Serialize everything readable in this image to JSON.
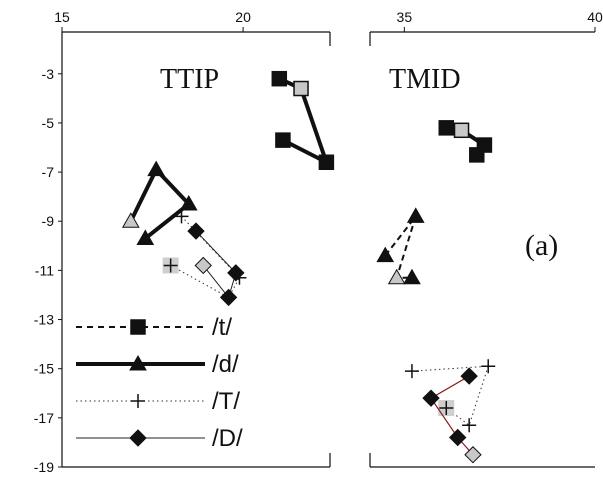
{
  "chart_data": {
    "type": "line",
    "panels": [
      {
        "title": "TTIP",
        "xlim": [
          15,
          22.4
        ],
        "x_ticks": [
          15,
          20
        ],
        "series": [
          {
            "name": "/t/",
            "marker": "square",
            "points": [
              [
                21.0,
                -3.2
              ],
              [
                21.6,
                -3.6
              ],
              [
                22.3,
                -6.6
              ],
              [
                21.1,
                -5.7
              ]
            ],
            "hollow": [
              false,
              true,
              false,
              false
            ]
          },
          {
            "name": "/d/",
            "marker": "triangle",
            "points": [
              [
                16.9,
                -9.0
              ],
              [
                17.6,
                -6.9
              ],
              [
                18.5,
                -8.3
              ],
              [
                17.3,
                -9.7
              ]
            ],
            "hollow": [
              true,
              false,
              false,
              false
            ]
          },
          {
            "name": "/T/",
            "marker": "plus",
            "points": [
              [
                18.3,
                -8.8
              ],
              [
                19.9,
                -11.3
              ],
              [
                19.6,
                -12.1
              ],
              [
                18.0,
                -10.8
              ]
            ],
            "hollow": [
              false,
              false,
              false,
              true
            ]
          },
          {
            "name": "/D/",
            "marker": "diamond",
            "points": [
              [
                18.7,
                -9.4
              ],
              [
                19.8,
                -11.1
              ],
              [
                19.6,
                -12.1
              ],
              [
                18.9,
                -10.8
              ]
            ],
            "hollow": [
              false,
              false,
              false,
              true
            ]
          }
        ]
      },
      {
        "title": "TMID",
        "xlim": [
          34.1,
          40
        ],
        "x_ticks": [
          35,
          40
        ],
        "series": [
          {
            "name": "/t/",
            "marker": "square",
            "points": [
              [
                36.1,
                -5.2
              ],
              [
                36.5,
                -5.3
              ],
              [
                37.1,
                -5.9
              ],
              [
                36.9,
                -6.3
              ]
            ],
            "hollow": [
              false,
              true,
              false,
              false
            ]
          },
          {
            "name": "/d/",
            "marker": "triangle",
            "points": [
              [
                34.5,
                -10.4
              ],
              [
                35.3,
                -8.8
              ],
              [
                34.8,
                -11.3
              ],
              [
                35.2,
                -11.3
              ]
            ],
            "hollow": [
              false,
              false,
              true,
              false
            ]
          },
          {
            "name": "/T/",
            "marker": "plus",
            "points": [
              [
                35.2,
                -15.1
              ],
              [
                37.2,
                -14.9
              ],
              [
                36.7,
                -17.3
              ],
              [
                36.1,
                -16.6
              ]
            ],
            "hollow": [
              false,
              false,
              false,
              true
            ]
          },
          {
            "name": "/D/",
            "marker": "diamond",
            "points": [
              [
                36.7,
                -15.3
              ],
              [
                35.7,
                -16.2
              ],
              [
                36.4,
                -17.8
              ],
              [
                36.8,
                -18.5
              ]
            ],
            "hollow": [
              false,
              false,
              false,
              true
            ]
          }
        ]
      }
    ],
    "ylim": [
      -19,
      -1.3
    ],
    "y_ticks": [
      -3,
      -5,
      -7,
      -9,
      -11,
      -13,
      -15,
      -17,
      -19
    ],
    "legend": {
      "position": "bottom-left",
      "entries": [
        {
          "label": "/t/",
          "marker": "square",
          "line": "dashed"
        },
        {
          "label": "/d/",
          "marker": "triangle",
          "line": "thick"
        },
        {
          "label": "/T/",
          "marker": "plus",
          "line": "dotted"
        },
        {
          "label": "/D/",
          "marker": "diamond",
          "line": "thin"
        }
      ]
    },
    "annotation": "(a)"
  }
}
